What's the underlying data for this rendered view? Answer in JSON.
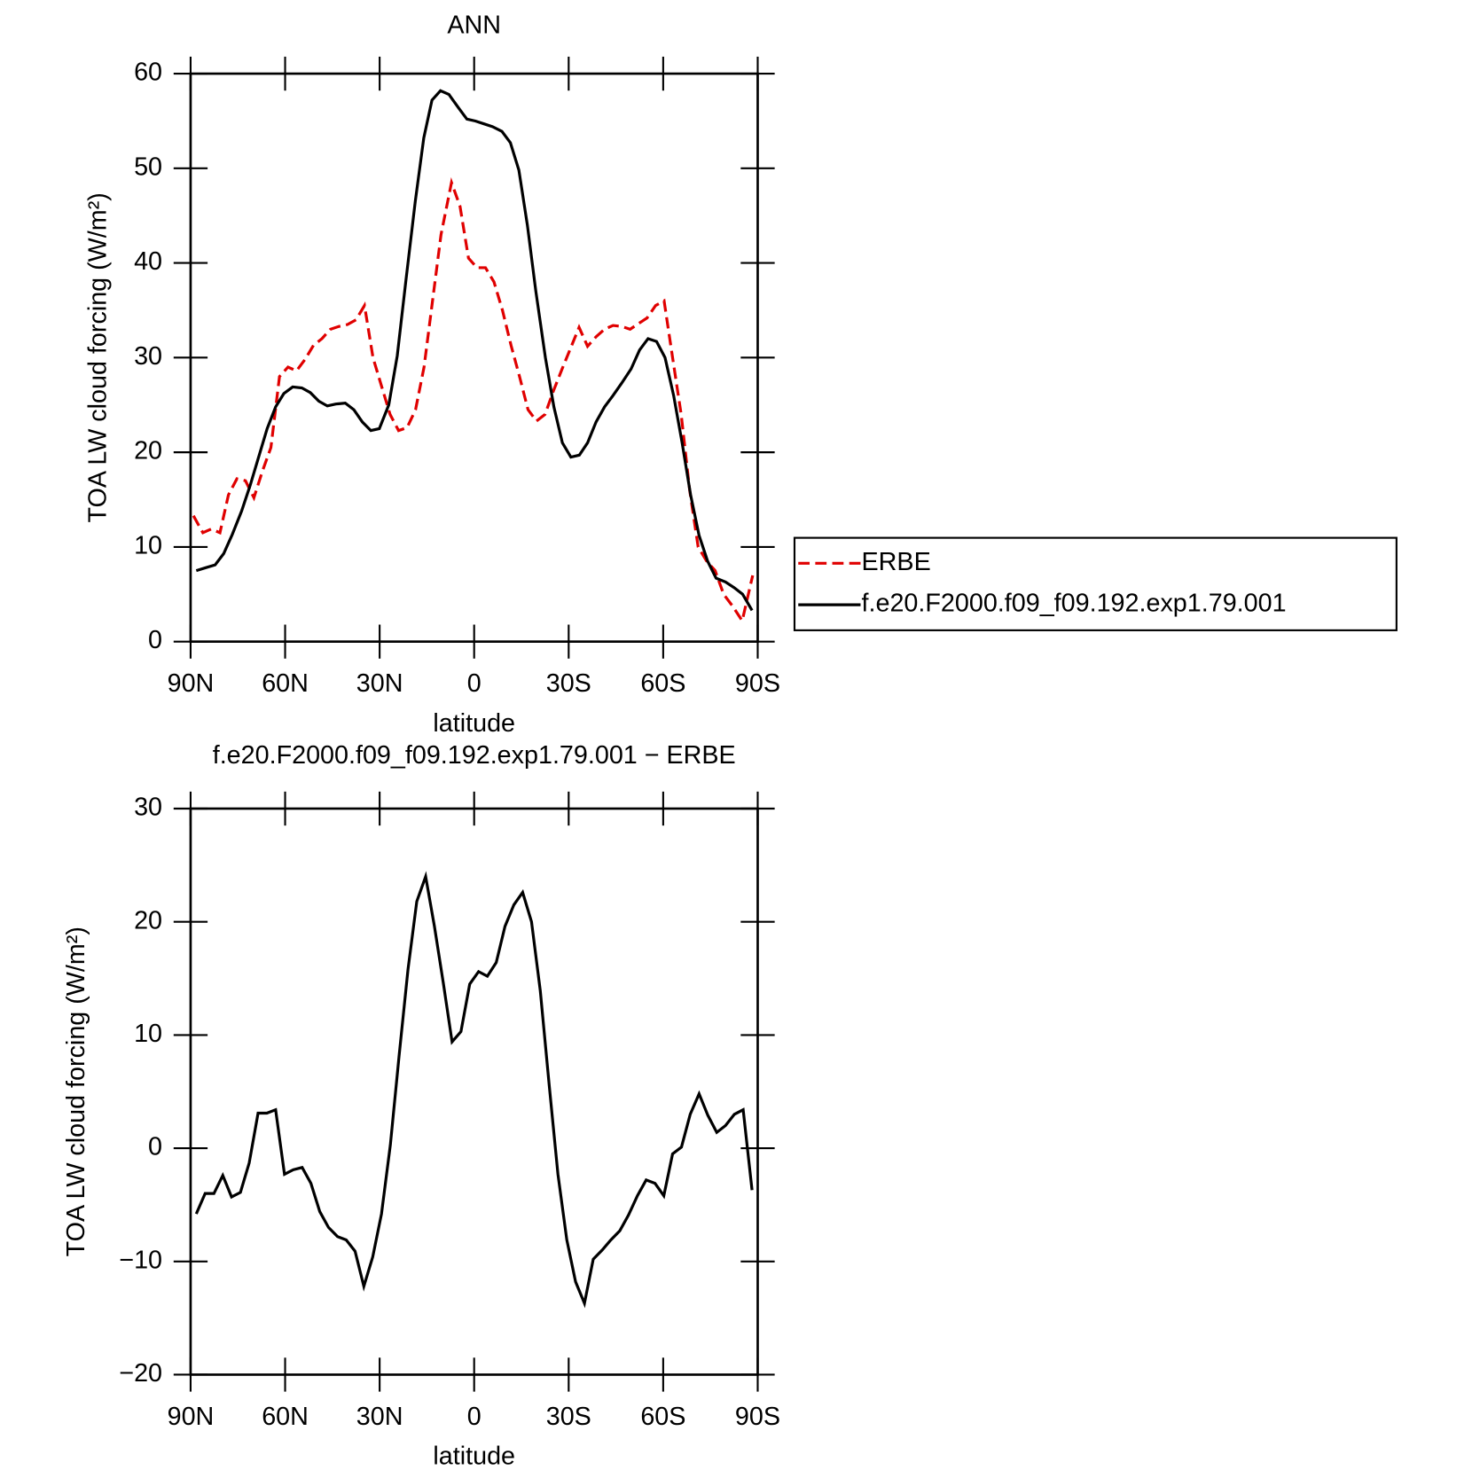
{
  "chart_data": [
    {
      "type": "line",
      "title": "ANN",
      "xlabel": "latitude",
      "ylabel": "TOA LW cloud forcing (W/m²)",
      "xlim": [
        90,
        -90
      ],
      "xticks": [
        {
          "value": 90,
          "label": "90N"
        },
        {
          "value": 60,
          "label": "60N"
        },
        {
          "value": 30,
          "label": "30N"
        },
        0,
        {
          "value": -30,
          "label": "30S"
        },
        {
          "value": -60,
          "label": "60S"
        },
        {
          "value": -90,
          "label": "90S"
        }
      ],
      "ylim": [
        0,
        60
      ],
      "yticks": [
        0,
        10,
        20,
        30,
        40,
        50,
        60
      ],
      "legend": true,
      "legend_position": "right",
      "series": [
        {
          "name": "ERBE",
          "color": "#e00000",
          "linestyle": "dashed",
          "x": [
            89.1,
            86.1,
            83.4,
            80.7,
            78.0,
            75.3,
            72.6,
            69.9,
            67.2,
            64.5,
            61.8,
            59.1,
            56.4,
            53.7,
            51.0,
            48.3,
            45.6,
            42.9,
            40.2,
            37.5,
            34.8,
            32.1,
            29.4,
            26.7,
            24.0,
            21.3,
            18.6,
            15.9,
            13.2,
            10.5,
            7.2,
            4.5,
            1.8,
            -0.9,
            -3.6,
            -6.3,
            -9.0,
            -11.7,
            -14.4,
            -17.1,
            -19.8,
            -22.5,
            -25.2,
            -27.9,
            -30.6,
            -33.3,
            -36.0,
            -38.7,
            -41.4,
            -44.1,
            -46.8,
            -49.5,
            -52.2,
            -54.9,
            -57.6,
            -60.3,
            -63.0,
            -65.7,
            -68.4,
            -71.1,
            -73.8,
            -76.5,
            -79.2,
            -81.9,
            -85.1,
            -88.4
          ],
          "values": [
            13.3,
            11.5,
            11.9,
            11.5,
            15.5,
            17.2,
            17.0,
            15.2,
            18,
            20.5,
            28,
            29,
            28.6,
            29.8,
            31.3,
            32,
            33,
            33.3,
            33.5,
            34,
            35.5,
            30,
            27,
            24,
            22.3,
            22.6,
            24.5,
            29,
            36,
            43,
            48.5,
            46,
            40.5,
            39.5,
            39.5,
            38,
            35,
            31.3,
            28,
            24.5,
            23.3,
            24,
            26.5,
            28.8,
            31,
            33.2,
            31.2,
            32.2,
            33,
            33.4,
            33.3,
            33,
            33.6,
            34.2,
            35.5,
            36,
            30,
            24,
            16,
            10,
            8.5,
            7.5,
            5,
            3.8,
            2.2,
            7
          ]
        },
        {
          "name": "f.e20.F2000.f09_f09.192.exp1.79.001",
          "color": "#000000",
          "linestyle": "solid",
          "x": [
            88.2,
            85.2,
            82.2,
            79.5,
            76.8,
            73.8,
            71.1,
            68.4,
            65.7,
            63,
            60.4,
            57.6,
            54.7,
            52,
            49.3,
            46.6,
            43.9,
            40.9,
            38.2,
            35.5,
            32.8,
            30.1,
            27.1,
            24.4,
            21.7,
            18.7,
            16,
            13.4,
            10.7,
            8,
            5,
            2.3,
            -0.4,
            -3.1,
            -5.8,
            -8.8,
            -11.5,
            -14.2,
            -16.9,
            -19.6,
            -22.6,
            -25.3,
            -28,
            -30.7,
            -33.4,
            -36,
            -38.7,
            -41.4,
            -44.1,
            -46.8,
            -49.8,
            -52.5,
            -55.2,
            -57.9,
            -60.6,
            -63.3,
            -66,
            -68.7,
            -71.4,
            -74.1,
            -76.8,
            -79.8,
            -82.5,
            -85.2,
            -88.2
          ],
          "values": [
            7.5,
            7.8,
            8.1,
            9.3,
            11.3,
            13.8,
            16.5,
            19.5,
            22.5,
            24.8,
            26.2,
            26.9,
            26.8,
            26.3,
            25.4,
            24.9,
            25.1,
            25.2,
            24.5,
            23.2,
            22.3,
            22.5,
            25.0,
            30.2,
            38,
            46.5,
            53.2,
            57.2,
            58.2,
            57.8,
            56.4,
            55.2,
            55.0,
            54.7,
            54.4,
            53.9,
            52.7,
            49.8,
            44,
            37,
            30,
            24.8,
            21,
            19.5,
            19.7,
            21,
            23.2,
            24.8,
            26,
            27.3,
            28.8,
            30.8,
            32,
            31.7,
            30,
            26,
            21,
            15.5,
            11.2,
            8.5,
            6.7,
            6.3,
            5.7,
            5.0,
            3.3
          ]
        }
      ]
    },
    {
      "type": "line",
      "title": "f.e20.F2000.f09_f09.192.exp1.79.001 − ERBE",
      "xlabel": "latitude",
      "ylabel": "TOA LW cloud forcing (W/m²)",
      "xlim": [
        90,
        -90
      ],
      "xticks": [
        {
          "value": 90,
          "label": "90N"
        },
        {
          "value": 60,
          "label": "60N"
        },
        {
          "value": 30,
          "label": "30N"
        },
        0,
        {
          "value": -30,
          "label": "30S"
        },
        {
          "value": -60,
          "label": "60S"
        },
        {
          "value": -90,
          "label": "90S"
        }
      ],
      "ylim": [
        -20,
        30
      ],
      "yticks": [
        {
          "value": -20,
          "label": "−20"
        },
        {
          "value": -10,
          "label": "−10"
        },
        0,
        10,
        20,
        30
      ],
      "legend": false,
      "series": [
        {
          "color": "#000000",
          "linestyle": "solid",
          "x": [
            88.2,
            85.4,
            82.6,
            79.8,
            77,
            74.2,
            71.4,
            68.6,
            65.8,
            63,
            60.2,
            57.4,
            54.6,
            51.8,
            49,
            46.2,
            43.4,
            40.6,
            37.8,
            35,
            32.2,
            29.4,
            26.6,
            23.8,
            21,
            18.2,
            15.4,
            12.6,
            9.8,
            7,
            4.2,
            1.4,
            -1.4,
            -4.2,
            -7,
            -9.8,
            -12.6,
            -15.4,
            -18.2,
            -21,
            -23.8,
            -26.6,
            -29.4,
            -32.2,
            -35,
            -37.8,
            -40.6,
            -43.4,
            -46.2,
            -49,
            -51.8,
            -54.6,
            -57.4,
            -60.2,
            -63,
            -65.8,
            -68.6,
            -71.4,
            -74.2,
            -77,
            -79.8,
            -82.6,
            -85.4,
            -88.2
          ],
          "values": [
            -5.8,
            -4.0,
            -4.0,
            -2.4,
            -4.3,
            -3.9,
            -1.3,
            3.1,
            3.1,
            3.4,
            -2.3,
            -1.9,
            -1.7,
            -3.1,
            -5.6,
            -7.0,
            -7.8,
            -8.1,
            -9.1,
            -12.2,
            -9.6,
            -5.8,
            0.3,
            8.2,
            15.8,
            21.8,
            24.0,
            19.6,
            14.6,
            9.4,
            10.3,
            14.5,
            15.6,
            15.2,
            16.4,
            19.6,
            21.5,
            22.6,
            20.0,
            13.9,
            5.6,
            -2.3,
            -8.1,
            -11.8,
            -13.7,
            -9.8,
            -9.0,
            -8.1,
            -7.3,
            -5.9,
            -4.2,
            -2.8,
            -3.1,
            -4.2,
            -0.5,
            0.1,
            3.0,
            4.8,
            2.9,
            1.4,
            2.0,
            3.0,
            3.4,
            -3.7
          ]
        }
      ]
    }
  ]
}
